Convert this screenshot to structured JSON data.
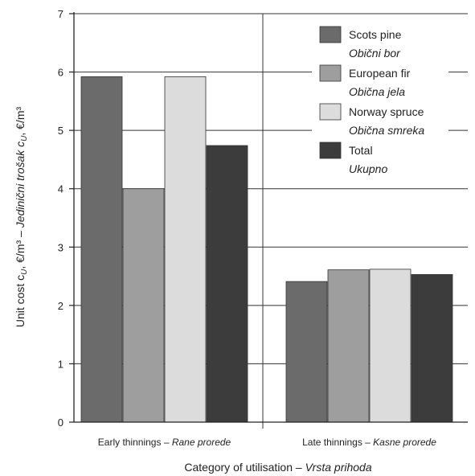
{
  "chart_data": {
    "type": "bar",
    "categories": [
      {
        "main": "Early thinnings",
        "sep": " – ",
        "alt": "Rane prorede"
      },
      {
        "main": "Late thinnings",
        "sep": " – ",
        "alt": "Kasne prorede"
      }
    ],
    "series": [
      {
        "name": "Scots pine",
        "name_alt": "Obični bor",
        "color": "#6b6b6b",
        "values": [
          5.92,
          2.41
        ]
      },
      {
        "name": "European fir",
        "name_alt": "Obična jela",
        "color": "#9e9e9e",
        "values": [
          4.0,
          2.61
        ]
      },
      {
        "name": "Norway spruce",
        "name_alt": "Obična smreka",
        "color": "#dcdcdc",
        "values": [
          5.92,
          2.62
        ]
      },
      {
        "name": "Total",
        "name_alt": "Ukupno",
        "color": "#3c3c3c",
        "values": [
          4.74,
          2.53
        ]
      }
    ],
    "xlabel": {
      "main": "Category of utilisation",
      "sep": " – ",
      "alt": "Vrsta prihoda"
    },
    "ylabel": {
      "main": "Unit cost  c",
      "sub": "U",
      "unit": ", €/m³ – ",
      "alt": "Jedinični trošak  c",
      "alt_sub": "U",
      "alt_unit": ", €/m³"
    },
    "yticks": [
      0,
      1,
      2,
      3,
      4,
      5,
      6,
      7
    ],
    "ylim": [
      0,
      7
    ],
    "grid": "horizontal",
    "legend_position": "top-right"
  }
}
